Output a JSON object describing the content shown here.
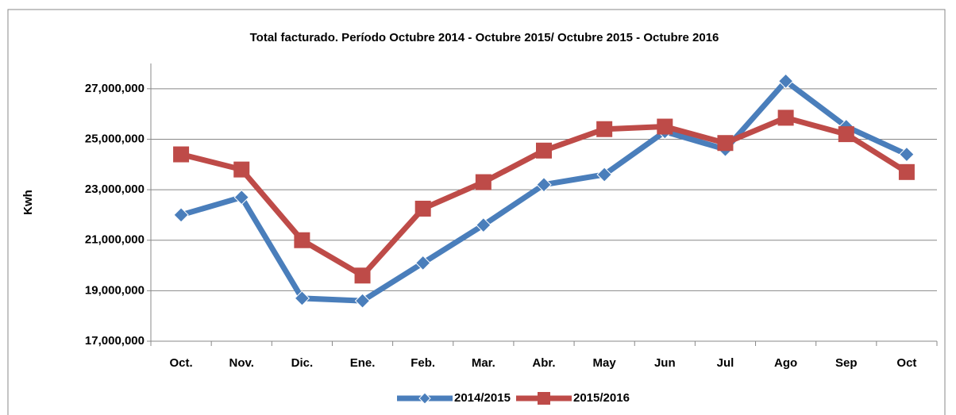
{
  "chart_data": {
    "type": "line",
    "title": "Total facturado. Período Octubre 2014 - Octubre 2015/ Octubre 2015 - Octubre 2016",
    "y_label": "Kwh",
    "categories": [
      "Oct.",
      "Nov.",
      "Dic.",
      "Ene.",
      "Feb.",
      "Mar.",
      "Abr.",
      "May",
      "Jun",
      "Jul",
      "Ago",
      "Sep",
      "Oct"
    ],
    "series": [
      {
        "name": "2014/2015",
        "color": "#4a7ebb",
        "marker": "diamond",
        "values": [
          22000000,
          22700000,
          18700000,
          18600000,
          20100000,
          21600000,
          23200000,
          23600000,
          25300000,
          24600000,
          27300000,
          25500000,
          24400000
        ]
      },
      {
        "name": "2015/2016",
        "color": "#be4b48",
        "marker": "square",
        "values": [
          24400000,
          23800000,
          21000000,
          19600000,
          22250000,
          23300000,
          24550000,
          25400000,
          25500000,
          24850000,
          25850000,
          25200000,
          23700000
        ]
      }
    ],
    "ylim": [
      17000000,
      28000000
    ],
    "yticks": [
      {
        "value": 17000000,
        "label": "17,000,000"
      },
      {
        "value": 19000000,
        "label": "19,000,000"
      },
      {
        "value": 21000000,
        "label": "21,000,000"
      },
      {
        "value": 23000000,
        "label": "23,000,000"
      },
      {
        "value": 25000000,
        "label": "25,000,000"
      },
      {
        "value": 27000000,
        "label": "27,000,000"
      }
    ],
    "grid": true,
    "legend": "bottom"
  }
}
